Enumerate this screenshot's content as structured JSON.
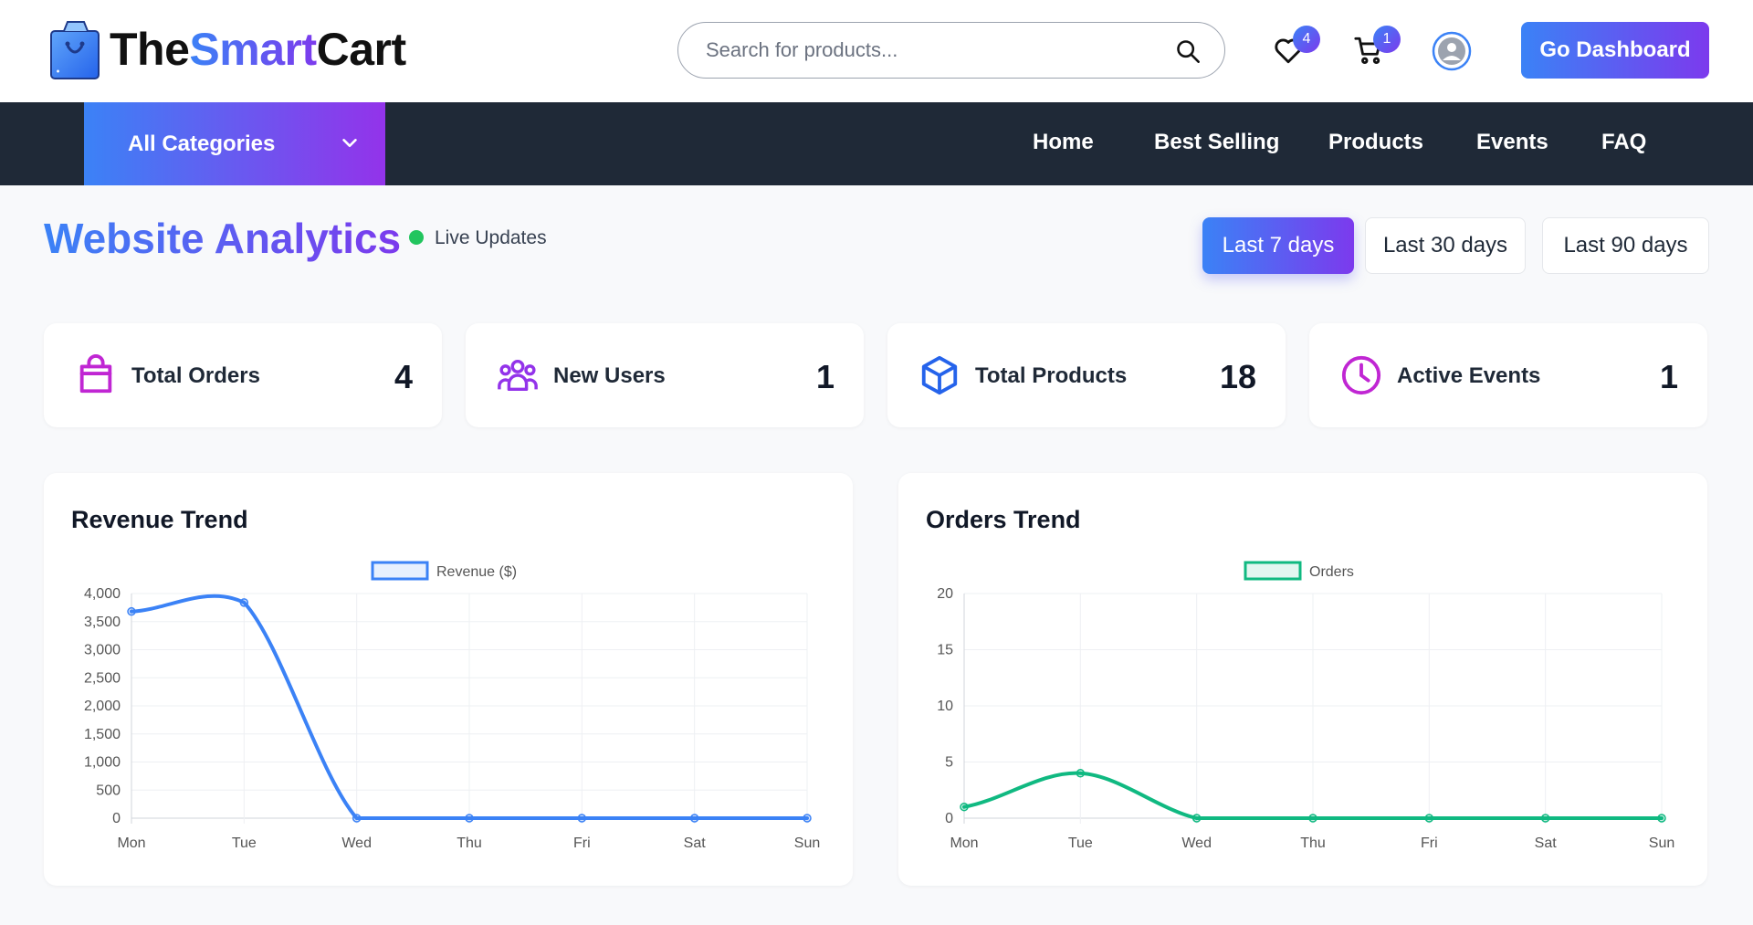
{
  "brand": {
    "part1": "The",
    "part2": "Smart",
    "part3": "Cart"
  },
  "search": {
    "placeholder": "Search for products..."
  },
  "header": {
    "wishlist_count": "4",
    "cart_count": "1",
    "dashboard_button": "Go Dashboard"
  },
  "nav": {
    "categories_label": "All Categories",
    "items": [
      "Home",
      "Best Selling",
      "Products",
      "Events",
      "FAQ"
    ]
  },
  "page": {
    "title": "Website Analytics",
    "live_label": "Live Updates",
    "ranges": [
      "Last 7 days",
      "Last 30 days",
      "Last 90 days"
    ],
    "active_range": "Last 7 days"
  },
  "stats": [
    {
      "label": "Total Orders",
      "value": "4",
      "icon": "shopping-bag-icon",
      "color": "#c026d3"
    },
    {
      "label": "New Users",
      "value": "1",
      "icon": "users-icon",
      "color": "#9333ea"
    },
    {
      "label": "Total Products",
      "value": "18",
      "icon": "box-icon",
      "color": "#2563eb"
    },
    {
      "label": "Active Events",
      "value": "1",
      "icon": "clock-icon",
      "color": "#c026d3"
    }
  ],
  "chart_data": [
    {
      "type": "line",
      "title": "Revenue Trend",
      "categories": [
        "Mon",
        "Tue",
        "Wed",
        "Thu",
        "Fri",
        "Sat",
        "Sun"
      ],
      "series": [
        {
          "name": "Revenue ($)",
          "values": [
            3680,
            3840,
            0,
            0,
            0,
            0,
            0
          ],
          "color": "#3b82f6"
        }
      ],
      "ylim": [
        0,
        4000
      ],
      "yticks": [
        0,
        500,
        1000,
        1500,
        2000,
        2500,
        3000,
        3500,
        4000
      ],
      "ytick_labels": [
        "0",
        "500",
        "1,000",
        "1,500",
        "2,000",
        "2,500",
        "3,000",
        "3,500",
        "4,000"
      ],
      "legend": "top-center",
      "grid": true
    },
    {
      "type": "line",
      "title": "Orders Trend",
      "categories": [
        "Mon",
        "Tue",
        "Wed",
        "Thu",
        "Fri",
        "Sat",
        "Sun"
      ],
      "series": [
        {
          "name": "Orders",
          "values": [
            1,
            4,
            0,
            0,
            0,
            0,
            0
          ],
          "color": "#10b981"
        }
      ],
      "ylim": [
        0,
        20
      ],
      "yticks": [
        0,
        5,
        10,
        15,
        20
      ],
      "ytick_labels": [
        "0",
        "5",
        "10",
        "15",
        "20"
      ],
      "legend": "top-center",
      "grid": true
    }
  ]
}
